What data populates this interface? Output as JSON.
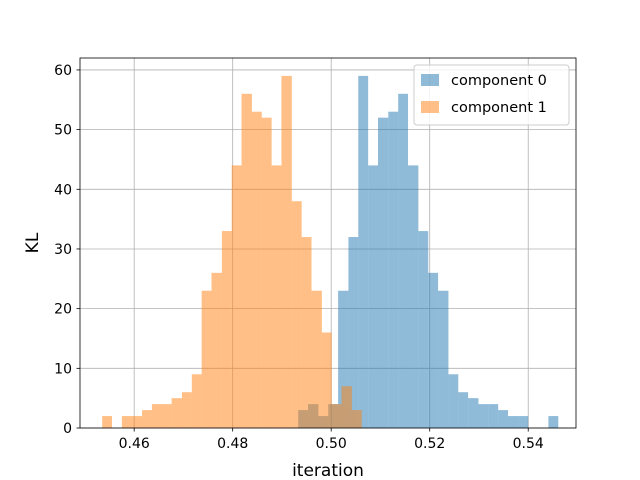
{
  "chart_data": {
    "type": "bar",
    "subtype": "histogram",
    "xlabel": "iteration",
    "ylabel": "KL",
    "xlim": [
      0.449,
      0.5497
    ],
    "ylim": [
      0,
      62
    ],
    "xticks": [
      "0.46",
      "0.48",
      "0.50",
      "0.52",
      "0.54"
    ],
    "xtick_values": [
      0.46,
      0.48,
      0.5,
      0.52,
      0.54
    ],
    "yticks": [
      0,
      10,
      20,
      30,
      40,
      50,
      60
    ],
    "grid": true,
    "legend_position": "top-right",
    "series": [
      {
        "name": "component 0",
        "color": "#1f77b4",
        "alpha": 0.5,
        "bins": [
          {
            "x0": 0.4933,
            "x1": 0.4953,
            "count": 3
          },
          {
            "x0": 0.4953,
            "x1": 0.4974,
            "count": 4
          },
          {
            "x0": 0.4974,
            "x1": 0.4994,
            "count": 2
          },
          {
            "x0": 0.4994,
            "x1": 0.5014,
            "count": 4
          },
          {
            "x0": 0.5014,
            "x1": 0.5035,
            "count": 23
          },
          {
            "x0": 0.5035,
            "x1": 0.5055,
            "count": 32
          },
          {
            "x0": 0.5055,
            "x1": 0.5075,
            "count": 59
          },
          {
            "x0": 0.5075,
            "x1": 0.5095,
            "count": 44
          },
          {
            "x0": 0.5095,
            "x1": 0.5116,
            "count": 52
          },
          {
            "x0": 0.5116,
            "x1": 0.5136,
            "count": 53
          },
          {
            "x0": 0.5136,
            "x1": 0.5156,
            "count": 56
          },
          {
            "x0": 0.5156,
            "x1": 0.5177,
            "count": 44
          },
          {
            "x0": 0.5177,
            "x1": 0.5197,
            "count": 33
          },
          {
            "x0": 0.5197,
            "x1": 0.5217,
            "count": 26
          },
          {
            "x0": 0.5217,
            "x1": 0.5238,
            "count": 23
          },
          {
            "x0": 0.5238,
            "x1": 0.5258,
            "count": 9
          },
          {
            "x0": 0.5258,
            "x1": 0.5278,
            "count": 6
          },
          {
            "x0": 0.5278,
            "x1": 0.5299,
            "count": 5
          },
          {
            "x0": 0.5299,
            "x1": 0.5319,
            "count": 4
          },
          {
            "x0": 0.5319,
            "x1": 0.5339,
            "count": 4
          },
          {
            "x0": 0.5339,
            "x1": 0.5359,
            "count": 3
          },
          {
            "x0": 0.5359,
            "x1": 0.538,
            "count": 2
          },
          {
            "x0": 0.538,
            "x1": 0.54,
            "count": 2
          },
          {
            "x0": 0.54,
            "x1": 0.5441,
            "count": 0
          },
          {
            "x0": 0.5441,
            "x1": 0.5461,
            "count": 2
          }
        ]
      },
      {
        "name": "component 1",
        "color": "#ff7f0e",
        "alpha": 0.5,
        "bins": [
          {
            "x0": 0.4535,
            "x1": 0.4555,
            "count": 2
          },
          {
            "x0": 0.4555,
            "x1": 0.4575,
            "count": 0
          },
          {
            "x0": 0.4575,
            "x1": 0.4616,
            "count": 2
          },
          {
            "x0": 0.4616,
            "x1": 0.4636,
            "count": 3
          },
          {
            "x0": 0.4636,
            "x1": 0.4676,
            "count": 4
          },
          {
            "x0": 0.4676,
            "x1": 0.4697,
            "count": 5
          },
          {
            "x0": 0.4697,
            "x1": 0.4717,
            "count": 6
          },
          {
            "x0": 0.4717,
            "x1": 0.4737,
            "count": 9
          },
          {
            "x0": 0.4737,
            "x1": 0.4757,
            "count": 23
          },
          {
            "x0": 0.4757,
            "x1": 0.4778,
            "count": 26
          },
          {
            "x0": 0.4778,
            "x1": 0.4798,
            "count": 33
          },
          {
            "x0": 0.4798,
            "x1": 0.4818,
            "count": 44
          },
          {
            "x0": 0.4818,
            "x1": 0.4839,
            "count": 56
          },
          {
            "x0": 0.4839,
            "x1": 0.4859,
            "count": 53
          },
          {
            "x0": 0.4859,
            "x1": 0.4879,
            "count": 52
          },
          {
            "x0": 0.4879,
            "x1": 0.4899,
            "count": 44
          },
          {
            "x0": 0.4899,
            "x1": 0.492,
            "count": 59
          },
          {
            "x0": 0.492,
            "x1": 0.494,
            "count": 38
          },
          {
            "x0": 0.494,
            "x1": 0.496,
            "count": 32
          },
          {
            "x0": 0.496,
            "x1": 0.4981,
            "count": 23
          },
          {
            "x0": 0.4981,
            "x1": 0.5001,
            "count": 16
          },
          {
            "x0": 0.5001,
            "x1": 0.5021,
            "count": 4
          },
          {
            "x0": 0.5021,
            "x1": 0.5042,
            "count": 7
          },
          {
            "x0": 0.5042,
            "x1": 0.5062,
            "count": 3
          }
        ]
      }
    ]
  }
}
